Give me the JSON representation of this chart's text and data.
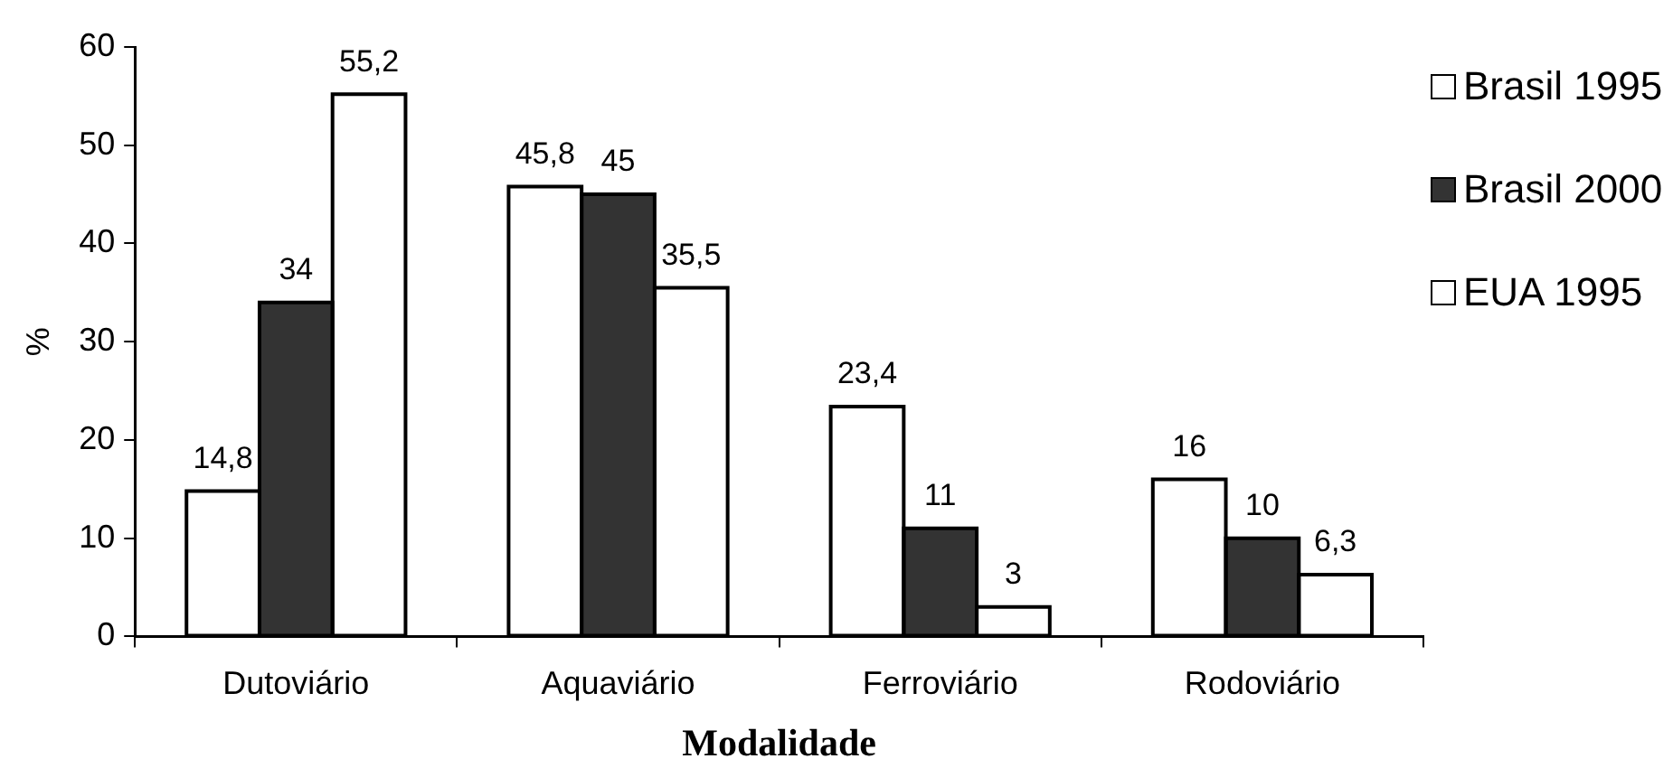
{
  "chart_data": {
    "type": "bar",
    "xlabel": "Modalidade",
    "ylabel": "%",
    "categories": [
      "Dutoviário",
      "Aquaviário",
      "Ferroviário",
      "Rodoviário"
    ],
    "series": [
      {
        "name": "Brasil 1995",
        "color": "#ffffff",
        "values": [
          14.8,
          45.8,
          23.4,
          16
        ],
        "value_labels": [
          "14,8",
          "45,8",
          "23,4",
          "16"
        ]
      },
      {
        "name": "Brasil 2000",
        "color": "#333333",
        "values": [
          34,
          45,
          11,
          10
        ],
        "value_labels": [
          "34",
          "45",
          "11",
          "10"
        ]
      },
      {
        "name": "EUA 1995",
        "color": "#ffffff",
        "values": [
          55.2,
          35.5,
          3,
          6.3
        ],
        "value_labels": [
          "55,2",
          "35,5",
          "3",
          "6,3"
        ]
      }
    ],
    "ylim": [
      0,
      60
    ],
    "yticks": [
      0,
      10,
      20,
      30,
      40,
      50,
      60
    ],
    "legend": "top right"
  }
}
